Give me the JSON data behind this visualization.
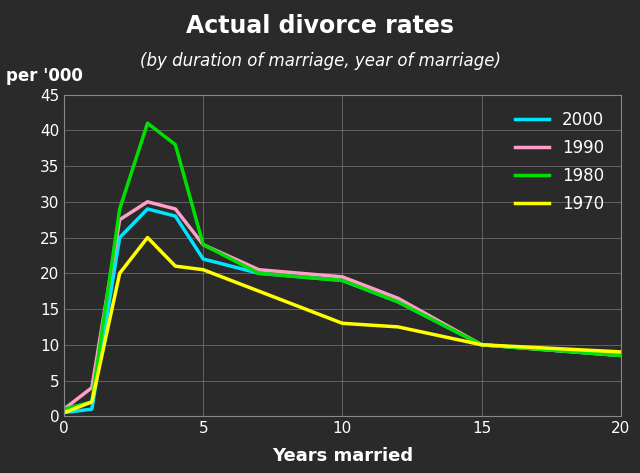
{
  "title": "Actual divorce rates",
  "subtitle": "(by duration of marriage, year of marriage)",
  "xlabel": "Years married",
  "per000_label": "per '000",
  "background_color": "#2a2a2a",
  "text_color": "#ffffff",
  "grid_color": "#888888",
  "xlim": [
    0,
    20
  ],
  "ylim": [
    0,
    45
  ],
  "xticks": [
    0,
    5,
    10,
    15,
    20
  ],
  "yticks": [
    0,
    5,
    10,
    15,
    20,
    25,
    30,
    35,
    40,
    45
  ],
  "series": {
    "2000": {
      "color": "#00e5ff",
      "x": [
        0,
        1,
        2,
        3,
        4,
        5,
        7,
        10,
        12,
        15,
        20
      ],
      "y": [
        0.5,
        1.0,
        25.0,
        29.0,
        28.0,
        22.0,
        20.0,
        19.0,
        16.0,
        10.0,
        8.5
      ]
    },
    "1990": {
      "color": "#ff9ec8",
      "x": [
        0,
        1,
        2,
        3,
        4,
        5,
        7,
        10,
        12,
        15,
        20
      ],
      "y": [
        1.0,
        4.0,
        27.5,
        30.0,
        29.0,
        24.0,
        20.5,
        19.5,
        16.5,
        10.0,
        8.5
      ]
    },
    "1980": {
      "color": "#00e000",
      "x": [
        0,
        1,
        2,
        3,
        4,
        5,
        7,
        10,
        12,
        15,
        20
      ],
      "y": [
        1.0,
        2.0,
        29.0,
        41.0,
        38.0,
        24.0,
        20.0,
        19.0,
        16.0,
        10.0,
        8.5
      ]
    },
    "1970": {
      "color": "#ffff00",
      "x": [
        0,
        1,
        2,
        3,
        4,
        5,
        7,
        10,
        12,
        15,
        20
      ],
      "y": [
        0.5,
        2.0,
        20.0,
        25.0,
        21.0,
        20.5,
        17.5,
        13.0,
        12.5,
        10.0,
        9.0
      ]
    }
  },
  "legend_order": [
    "2000",
    "1990",
    "1980",
    "1970"
  ],
  "linewidth": 2.5,
  "title_fontsize": 17,
  "subtitle_fontsize": 12,
  "axis_label_fontsize": 13,
  "tick_fontsize": 11,
  "legend_fontsize": 12,
  "per000_fontsize": 12
}
